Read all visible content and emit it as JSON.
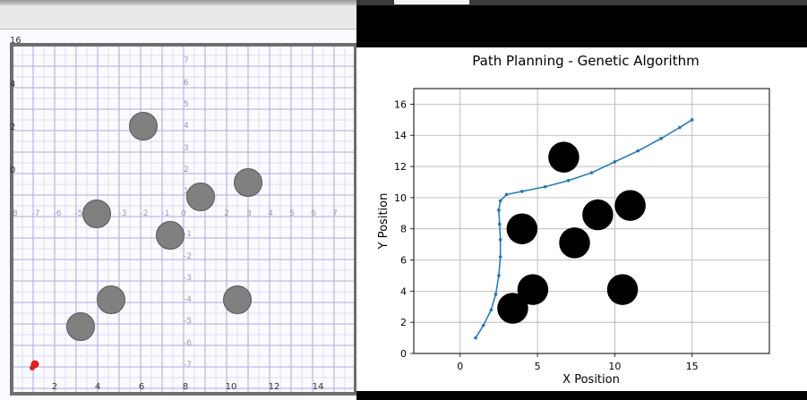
{
  "left_canvas": {
    "x_ticks": [
      "2",
      "4",
      "6",
      "8",
      "10",
      "12",
      "14"
    ],
    "y_ticks": [
      "16",
      "4",
      "2",
      "0"
    ],
    "mid_x_ticks": [
      "8",
      "-7",
      "-6",
      "-5",
      "-4",
      "-3",
      "-2",
      "-1",
      "0",
      "2",
      "3",
      "4",
      "5",
      "6",
      "7"
    ],
    "mid_y_ticks": [
      "7",
      "6",
      "5",
      "4",
      "3",
      "2",
      "1",
      "-1",
      "-2",
      "-3",
      "-4",
      "-5",
      "-6",
      "-7"
    ],
    "obstacle_color": "#808080",
    "marker_color": "#e02020"
  },
  "chart_data": {
    "type": "line",
    "title": "Path Planning - Genetic Algorithm",
    "xlabel": "X Position",
    "ylabel": "Y Position",
    "xlim": [
      -3,
      20
    ],
    "ylim": [
      0,
      17
    ],
    "x_ticks": [
      "0",
      "5",
      "10",
      "15"
    ],
    "y_ticks": [
      "0",
      "2",
      "4",
      "6",
      "8",
      "10",
      "12",
      "14",
      "16"
    ],
    "grid": true,
    "path_color": "#1f77b4",
    "obstacle_color": "#000000",
    "path": {
      "x": [
        1.0,
        1.5,
        2.0,
        2.3,
        2.5,
        2.6,
        2.6,
        2.55,
        2.5,
        2.6,
        3.0,
        4.0,
        5.5,
        7.0,
        8.5,
        10.0,
        11.5,
        13.0,
        14.2,
        15.0
      ],
      "y": [
        1.0,
        1.8,
        2.8,
        3.8,
        5.0,
        6.2,
        7.3,
        8.3,
        9.2,
        9.8,
        10.2,
        10.4,
        10.7,
        11.1,
        11.6,
        12.3,
        13.0,
        13.8,
        14.5,
        15.0
      ]
    },
    "obstacles": [
      {
        "x": 6.7,
        "y": 12.6,
        "r": 1.0
      },
      {
        "x": 11.0,
        "y": 9.5,
        "r": 1.0
      },
      {
        "x": 8.9,
        "y": 8.9,
        "r": 1.0
      },
      {
        "x": 4.0,
        "y": 8.0,
        "r": 1.0
      },
      {
        "x": 7.4,
        "y": 7.1,
        "r": 1.0
      },
      {
        "x": 4.7,
        "y": 4.1,
        "r": 1.0
      },
      {
        "x": 10.5,
        "y": 4.1,
        "r": 1.0
      },
      {
        "x": 3.4,
        "y": 2.9,
        "r": 1.0
      }
    ]
  }
}
